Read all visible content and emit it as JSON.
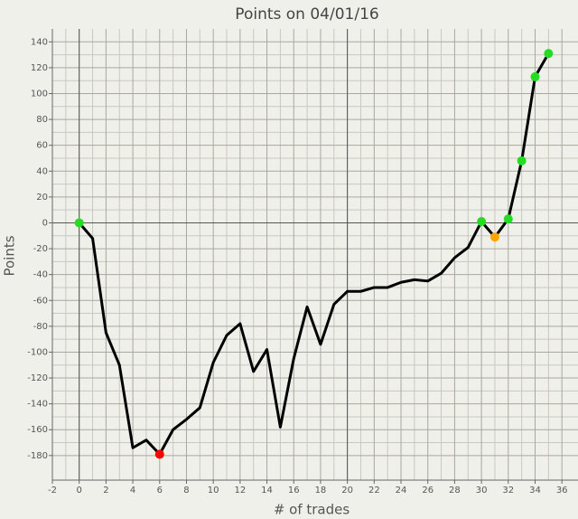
{
  "chart_data": {
    "type": "line",
    "title": "Points on 04/01/16",
    "x_label": "# of trades",
    "y_label": "Points",
    "x": [
      0,
      1,
      2,
      3,
      4,
      5,
      6,
      7,
      8,
      9,
      10,
      11,
      12,
      13,
      14,
      15,
      16,
      17,
      18,
      19,
      20,
      21,
      22,
      23,
      24,
      25,
      26,
      27,
      28,
      29,
      30,
      31,
      32,
      33,
      34,
      35
    ],
    "values": [
      0,
      -12,
      -85,
      -110,
      -174,
      -168,
      -179,
      -160,
      -152,
      -143,
      -108,
      -87,
      -78,
      -115,
      -98,
      -158,
      -105,
      -65,
      -94,
      -63,
      -53,
      -53,
      -50,
      -50,
      -46,
      -44,
      -45,
      -39,
      -27,
      -19,
      1,
      -11,
      3,
      48,
      113,
      131
    ],
    "color": "#000000",
    "point_colors": [
      "#22dd22",
      null,
      null,
      null,
      null,
      null,
      "#ff0000",
      null,
      null,
      null,
      null,
      null,
      null,
      null,
      null,
      null,
      null,
      null,
      null,
      null,
      null,
      null,
      null,
      null,
      null,
      null,
      null,
      null,
      null,
      null,
      "#22dd22",
      "#ffa500",
      "#22dd22",
      "#22dd22",
      "#22dd22",
      "#22dd22"
    ],
    "xlim": [
      -2,
      37.2
    ],
    "ylim": [
      -199,
      150
    ],
    "xticks": [
      -2,
      0,
      2,
      4,
      6,
      8,
      10,
      12,
      14,
      16,
      18,
      20,
      22,
      24,
      26,
      28,
      30,
      32,
      34,
      36
    ],
    "yticks": [
      -180,
      -160,
      -140,
      -120,
      -100,
      -80,
      -60,
      -40,
      -20,
      0,
      20,
      40,
      60,
      80,
      100,
      120,
      140
    ],
    "reference_lines": {
      "x": [
        0,
        20
      ],
      "y": [
        0
      ]
    },
    "grid": true
  }
}
